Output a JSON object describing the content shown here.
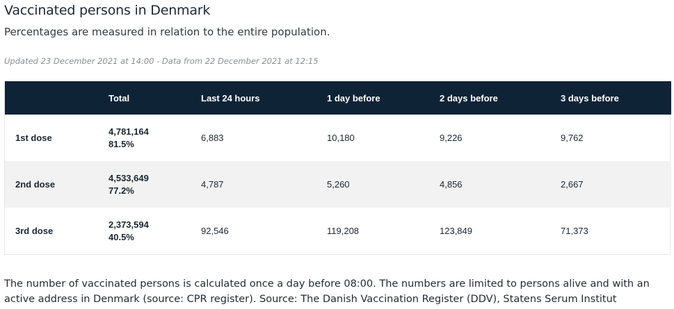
{
  "header": {
    "title": "Vaccinated persons in Denmark",
    "subtitle": "Percentages are measured in relation to the entire population.",
    "updated": "Updated 23 December 2021 at 14:00 - Data from 22 December 2021 at 12:15"
  },
  "table": {
    "columns": [
      "",
      "Total",
      "Last 24 hours",
      "1 day before",
      "2 days before",
      "3 days before"
    ],
    "rows": [
      {
        "label": "1st dose",
        "total_count": "4,781,164",
        "total_pct": "81.5%",
        "last_24h": "6,883",
        "day_1": "10,180",
        "day_2": "9,226",
        "day_3": "9,762"
      },
      {
        "label": "2nd dose",
        "total_count": "4,533,649",
        "total_pct": "77.2%",
        "last_24h": "4,787",
        "day_1": "5,260",
        "day_2": "4,856",
        "day_3": "2,667"
      },
      {
        "label": "3rd dose",
        "total_count": "2,373,594",
        "total_pct": "40.5%",
        "last_24h": "92,546",
        "day_1": "119,208",
        "day_2": "123,849",
        "day_3": "71,373"
      }
    ]
  },
  "footer": {
    "note": "The number of vaccinated persons is calculated once a day before 08:00. The numbers are limited to persons alive and with an active address in Denmark (source: CPR register). Source: The Danish Vaccination Register (DDV), Statens Serum Institut"
  },
  "colors": {
    "header_bg": "#0f2337",
    "stripe_bg": "#f2f2f2",
    "text": "#1b2631"
  }
}
